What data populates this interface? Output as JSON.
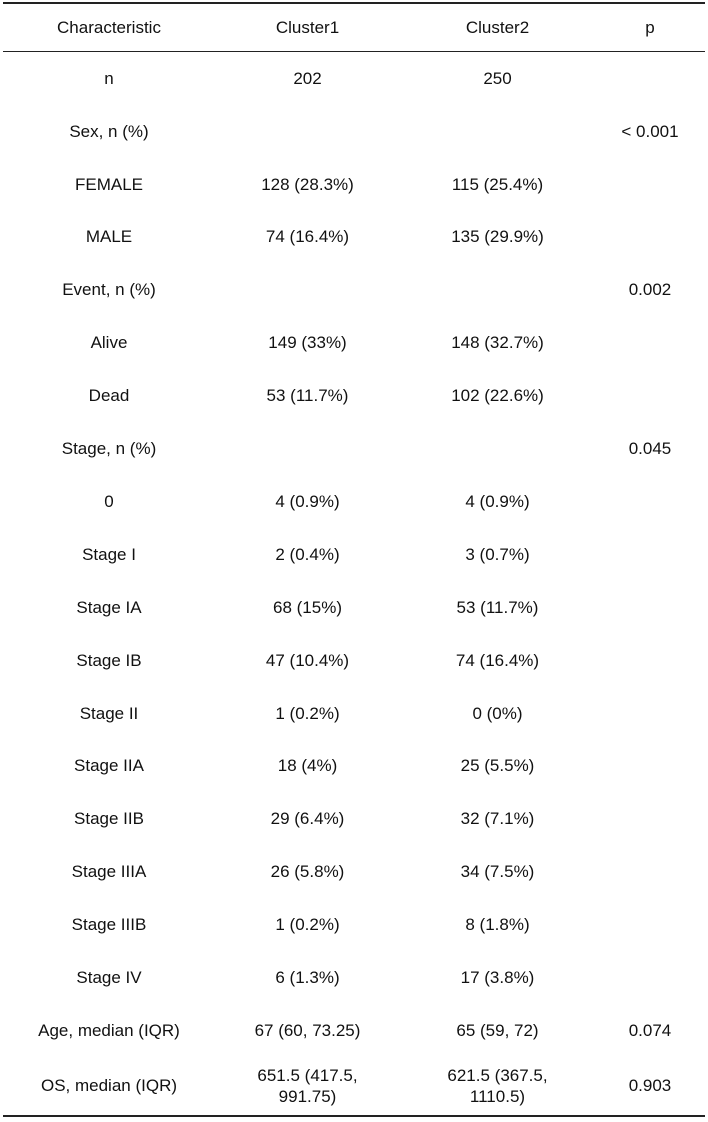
{
  "table": {
    "headers": [
      "Characteristic",
      "Cluster1",
      "Cluster2",
      "p"
    ],
    "rows": [
      [
        "n",
        "202",
        "250",
        ""
      ],
      [
        "Sex, n (%)",
        "",
        "",
        "< 0.001"
      ],
      [
        "FEMALE",
        "128 (28.3%)",
        "115 (25.4%)",
        ""
      ],
      [
        "MALE",
        "74 (16.4%)",
        "135 (29.9%)",
        ""
      ],
      [
        "Event, n (%)",
        "",
        "",
        "0.002"
      ],
      [
        "Alive",
        "149 (33%)",
        "148 (32.7%)",
        ""
      ],
      [
        "Dead",
        "53 (11.7%)",
        "102 (22.6%)",
        ""
      ],
      [
        "Stage, n (%)",
        "",
        "",
        "0.045"
      ],
      [
        "0",
        "4 (0.9%)",
        "4 (0.9%)",
        ""
      ],
      [
        "Stage I",
        "2 (0.4%)",
        "3 (0.7%)",
        ""
      ],
      [
        "Stage IA",
        "68 (15%)",
        "53 (11.7%)",
        ""
      ],
      [
        "Stage IB",
        "47 (10.4%)",
        "74 (16.4%)",
        ""
      ],
      [
        "Stage II",
        "1 (0.2%)",
        "0 (0%)",
        ""
      ],
      [
        "Stage IIA",
        "18 (4%)",
        "25 (5.5%)",
        ""
      ],
      [
        "Stage IIB",
        "29 (6.4%)",
        "32 (7.1%)",
        ""
      ],
      [
        "Stage IIIA",
        "26 (5.8%)",
        "34 (7.5%)",
        ""
      ],
      [
        "Stage IIIB",
        "1 (0.2%)",
        "8 (1.8%)",
        ""
      ],
      [
        "Stage IV",
        "6 (1.3%)",
        "17 (3.8%)",
        ""
      ],
      [
        "Age, median (IQR)",
        "67 (60, 73.25)",
        "65 (59, 72)",
        "0.074"
      ],
      [
        "OS, median (IQR)",
        "651.5 (417.5,\n991.75)",
        "621.5 (367.5,\n1110.5)",
        "0.903"
      ]
    ]
  }
}
